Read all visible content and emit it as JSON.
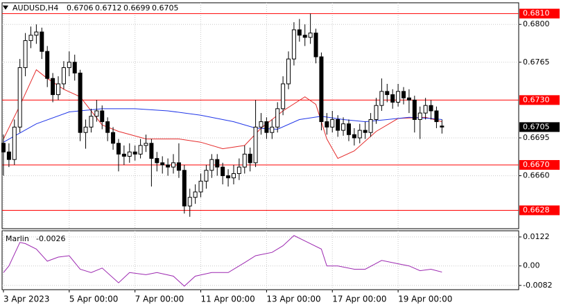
{
  "chart_data": [
    {
      "type": "candlestick",
      "symbol": "AUDUSD,H4",
      "open": [
        0.669,
        0.6682,
        0.6675,
        0.6705,
        0.676,
        0.6785,
        0.679,
        0.6793,
        0.6775,
        0.675,
        0.6735,
        0.6745,
        0.676,
        0.6765,
        0.6755,
        0.67,
        0.6705,
        0.6715,
        0.672,
        0.671,
        0.67,
        0.669,
        0.668,
        0.6678,
        0.6682,
        0.668,
        0.6688,
        0.669,
        0.6676,
        0.6672,
        0.667,
        0.6668,
        0.6672,
        0.6665,
        0.6632,
        0.664,
        0.6645,
        0.6655,
        0.6665,
        0.6675,
        0.6668,
        0.666,
        0.6658,
        0.6662,
        0.6668,
        0.668,
        0.6672,
        0.6705,
        0.671,
        0.67,
        0.6705,
        0.6722,
        0.6745,
        0.6768,
        0.6795,
        0.679,
        0.6788,
        0.6792,
        0.677,
        0.671,
        0.6705,
        0.6712,
        0.6702,
        0.6708,
        0.6698,
        0.6695,
        0.6702,
        0.67,
        0.6712,
        0.6725,
        0.6738,
        0.6735,
        0.6728,
        0.6738,
        0.6732,
        0.673,
        0.6712,
        0.6718,
        0.6725,
        0.672,
        0.6706
      ],
      "high": [
        0.6698,
        0.669,
        0.6712,
        0.6768,
        0.6792,
        0.6798,
        0.68,
        0.6797,
        0.678,
        0.6755,
        0.6752,
        0.6766,
        0.6775,
        0.6772,
        0.6758,
        0.6712,
        0.6722,
        0.673,
        0.6725,
        0.6714,
        0.6705,
        0.6694,
        0.6688,
        0.669,
        0.6688,
        0.6694,
        0.6698,
        0.6694,
        0.6682,
        0.6678,
        0.6676,
        0.668,
        0.669,
        0.667,
        0.6648,
        0.6652,
        0.6662,
        0.667,
        0.668,
        0.668,
        0.6672,
        0.6666,
        0.667,
        0.6676,
        0.6688,
        0.6686,
        0.673,
        0.6718,
        0.6714,
        0.6712,
        0.6728,
        0.6752,
        0.6775,
        0.6802,
        0.6805,
        0.68,
        0.681,
        0.6796,
        0.6774,
        0.6718,
        0.672,
        0.6716,
        0.6714,
        0.6712,
        0.6704,
        0.6708,
        0.671,
        0.6718,
        0.6732,
        0.675,
        0.6745,
        0.674,
        0.6745,
        0.6742,
        0.674,
        0.6734,
        0.6724,
        0.6732,
        0.673,
        0.6724,
        0.6712
      ],
      "low": [
        0.666,
        0.6668,
        0.667,
        0.67,
        0.6752,
        0.6778,
        0.6782,
        0.6768,
        0.6742,
        0.6728,
        0.673,
        0.674,
        0.6752,
        0.6748,
        0.6692,
        0.6685,
        0.67,
        0.671,
        0.6703,
        0.6692,
        0.6684,
        0.6664,
        0.667,
        0.6672,
        0.6674,
        0.6676,
        0.6682,
        0.665,
        0.6664,
        0.6662,
        0.666,
        0.6662,
        0.6658,
        0.6625,
        0.6622,
        0.6634,
        0.664,
        0.6648,
        0.6658,
        0.666,
        0.6652,
        0.665,
        0.6652,
        0.6656,
        0.6662,
        0.6664,
        0.6668,
        0.6698,
        0.6694,
        0.6694,
        0.67,
        0.6716,
        0.674,
        0.6762,
        0.6784,
        0.678,
        0.6782,
        0.6764,
        0.6702,
        0.6698,
        0.67,
        0.6696,
        0.6697,
        0.6692,
        0.6688,
        0.669,
        0.6694,
        0.6696,
        0.6708,
        0.672,
        0.6728,
        0.6722,
        0.6724,
        0.6726,
        0.6718,
        0.67,
        0.6694,
        0.6712,
        0.6712,
        0.6704,
        0.6699
      ],
      "close": [
        0.6682,
        0.6675,
        0.6705,
        0.676,
        0.6785,
        0.679,
        0.6793,
        0.6775,
        0.675,
        0.6735,
        0.6745,
        0.676,
        0.6765,
        0.6755,
        0.67,
        0.6705,
        0.6715,
        0.672,
        0.671,
        0.67,
        0.669,
        0.668,
        0.6678,
        0.6682,
        0.668,
        0.6688,
        0.669,
        0.6676,
        0.6672,
        0.667,
        0.6668,
        0.6672,
        0.6665,
        0.6632,
        0.664,
        0.6645,
        0.6655,
        0.6665,
        0.6675,
        0.6668,
        0.666,
        0.6658,
        0.6662,
        0.6668,
        0.668,
        0.6672,
        0.6705,
        0.671,
        0.67,
        0.6705,
        0.6722,
        0.6745,
        0.6768,
        0.6795,
        0.679,
        0.6788,
        0.6792,
        0.677,
        0.671,
        0.6705,
        0.6712,
        0.6702,
        0.6708,
        0.6698,
        0.6695,
        0.6702,
        0.67,
        0.6712,
        0.6725,
        0.6738,
        0.6735,
        0.6728,
        0.6738,
        0.6732,
        0.673,
        0.6712,
        0.6718,
        0.6725,
        0.672,
        0.671,
        0.6705
      ],
      "up_color": "#ffffff",
      "down_color": "#000000",
      "lines": [
        {
          "color": "#e52b2b",
          "x": [
            0,
            3,
            6,
            8,
            11,
            14,
            18,
            21,
            26,
            32,
            36,
            40,
            44,
            47,
            51,
            55,
            57,
            59,
            61,
            64,
            68,
            72,
            77,
            80
          ],
          "values": [
            0.6694,
            0.6725,
            0.6758,
            0.675,
            0.674,
            0.6733,
            0.6707,
            0.6701,
            0.6694,
            0.6694,
            0.6691,
            0.6685,
            0.6688,
            0.6704,
            0.672,
            0.6733,
            0.6726,
            0.6694,
            0.6676,
            0.6683,
            0.6701,
            0.6713,
            0.6714,
            0.671
          ]
        },
        {
          "color": "#1f35e8",
          "x": [
            0,
            6,
            12,
            18,
            24,
            30,
            36,
            42,
            46,
            50,
            54,
            58,
            62,
            66,
            70,
            74,
            78,
            80
          ],
          "values": [
            0.6691,
            0.6708,
            0.6719,
            0.6722,
            0.6722,
            0.672,
            0.6716,
            0.671,
            0.6704,
            0.6703,
            0.6712,
            0.6715,
            0.6712,
            0.671,
            0.6712,
            0.6714,
            0.6713,
            0.6712
          ]
        }
      ],
      "levels": [
        {
          "value": 0.681,
          "label": "0.6810"
        },
        {
          "value": 0.673,
          "label": "0.6730"
        },
        {
          "value": 0.667,
          "label": "0.6670"
        },
        {
          "value": 0.6628,
          "label": "0.6628"
        }
      ],
      "level_color": "#ff0000",
      "xlim": [
        -0.25,
        94
      ],
      "ylim": [
        0.6611,
        0.682
      ],
      "yticks": [
        {
          "value": 0.68,
          "label": "0.6800"
        },
        0.6765,
        0.6695,
        {
          "value": 0.666,
          "label": "0.6660"
        }
      ],
      "xticks": [
        {
          "value": 0,
          "label": "3 Apr 2023"
        },
        {
          "value": 12,
          "label": "5 Apr 00:00"
        },
        {
          "value": 24,
          "label": "7 Apr 00:00"
        },
        {
          "value": 36,
          "label": "11 Apr 00:00"
        },
        {
          "value": 48,
          "label": "13 Apr 00:00"
        },
        {
          "value": 60,
          "label": "17 Apr 00:00"
        },
        {
          "value": 72,
          "label": "19 Apr 00:00"
        }
      ],
      "grid": true
    },
    {
      "type": "line",
      "series": [
        {
          "name": "Marlin",
          "color": "#9c27b0",
          "x": [
            0,
            1,
            3,
            4,
            6,
            8,
            10,
            12,
            14,
            16,
            18,
            21,
            23,
            26,
            28,
            31,
            33,
            35,
            38,
            41,
            44,
            46,
            49,
            51,
            53,
            55,
            58,
            59,
            61,
            64,
            66,
            69,
            72,
            74,
            76,
            78,
            80
          ],
          "values": [
            -0.0028,
            0,
            0.0099,
            0.0094,
            0.0071,
            0.002,
            0.0037,
            0.0043,
            -0.0014,
            -0.0028,
            -0.0009,
            -0.0071,
            -0.0028,
            -0.0037,
            -0.0028,
            -0.0043,
            -0.0085,
            -0.0043,
            -0.0028,
            -0.0028,
            0.0014,
            0.0043,
            0.0057,
            0.0085,
            0.0128,
            0.0105,
            0.0071,
            0,
            0,
            -0.0014,
            -0.0014,
            0.0023,
            0.0009,
            0,
            -0.002,
            -0.0014,
            -0.0026
          ]
        }
      ],
      "xlim": [
        -0.25,
        94
      ],
      "ylim": [
        -0.01,
        0.0148
      ],
      "yticks": [
        0.0122,
        {
          "value": 0,
          "label": "0.00"
        },
        -0.0082
      ],
      "grid": true
    }
  ]
}
